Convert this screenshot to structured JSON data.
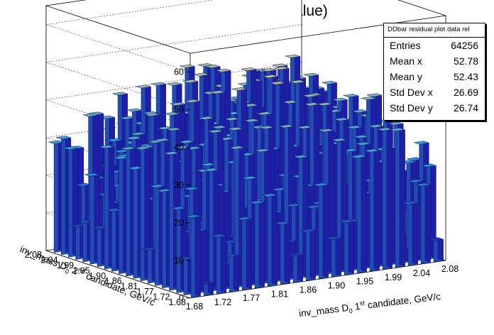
{
  "chart_data": {
    "type": "3d-bar",
    "title": "residuals (relative value)",
    "x_axis": {
      "label_prefix": "inv_mass D",
      "label_sub": "0",
      "label_mid": " 1",
      "label_sup": "st",
      "label_suffix": " candidate, GeV/c",
      "ticks": [
        "1.68",
        "1.72",
        "1.77",
        "1.81",
        "1.86",
        "1.90",
        "1.95",
        "1.99",
        "2.04",
        "2.08"
      ],
      "range": [
        1.68,
        2.08
      ]
    },
    "y_axis": {
      "label_prefix": "inv_mass D",
      "label_sub": "0",
      "label_mid": " 2",
      "label_sup": "nd",
      "label_suffix": " candidate, GeV/c",
      "ticks": [
        "1.68",
        "1.72",
        "1.77",
        "1.81",
        "1.86",
        "1.90",
        "1.95",
        "1.99",
        "2.04",
        "2.08"
      ],
      "range": [
        1.68,
        2.08
      ]
    },
    "z_axis": {
      "ticks": [
        "0",
        "10",
        "20",
        "30",
        "40",
        "50",
        "60"
      ],
      "range": [
        0,
        65
      ]
    },
    "grid": true,
    "nbins_x": 20,
    "nbins_y": 20,
    "value_range_estimate": [
      5,
      62
    ]
  },
  "stats": {
    "name": "DDbar residual plot data rel",
    "rows": [
      {
        "label": "Entries",
        "value": "64256"
      },
      {
        "label": "Mean x",
        "value": "52.78"
      },
      {
        "label": "Mean y",
        "value": "52.43"
      },
      {
        "label": "Std Dev x",
        "value": "26.69"
      },
      {
        "label": "Std Dev y",
        "value": "26.74"
      }
    ]
  },
  "colors": {
    "low": "#1d1fa5",
    "mid": "#2f9fd0",
    "high": "#e8c878",
    "edge": "#101a80"
  }
}
